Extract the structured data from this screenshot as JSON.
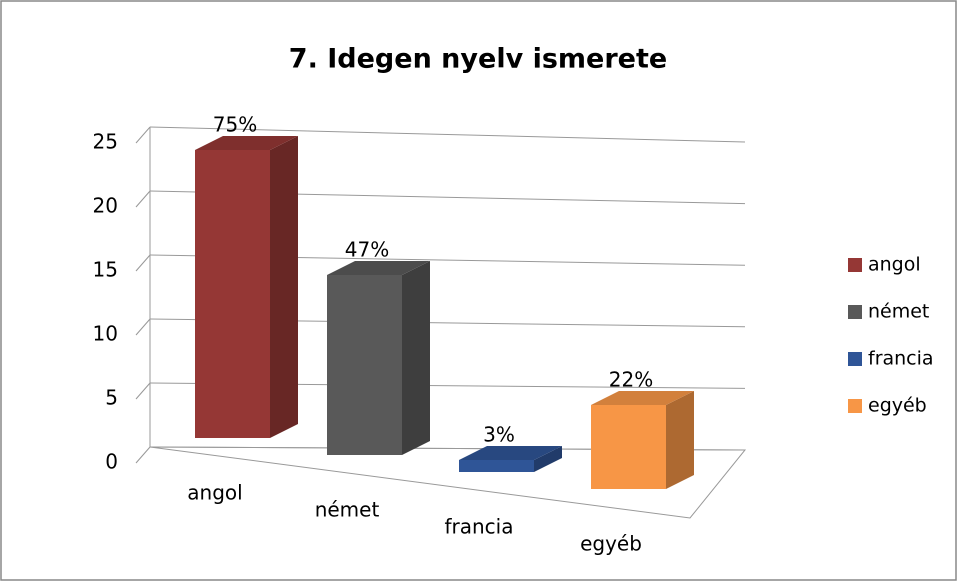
{
  "chart_data": {
    "type": "bar3d",
    "title": "7. Idegen nyelv ismerete",
    "categories": [
      "angol",
      "német",
      "francia",
      "egyéb"
    ],
    "series": [
      {
        "name": "angol",
        "color": "#953735"
      },
      {
        "name": "német",
        "color": "#595959"
      },
      {
        "name": "francia",
        "color": "#2f5597"
      },
      {
        "name": "egyéb",
        "color": "#f79646"
      }
    ],
    "values": [
      24,
      15,
      1,
      7
    ],
    "value_labels": [
      "75%",
      "47%",
      "3%",
      "22%"
    ],
    "ylim": [
      0,
      25
    ],
    "yticks": [
      0,
      5,
      10,
      15,
      20,
      25
    ],
    "grid": true,
    "legend": "right"
  }
}
